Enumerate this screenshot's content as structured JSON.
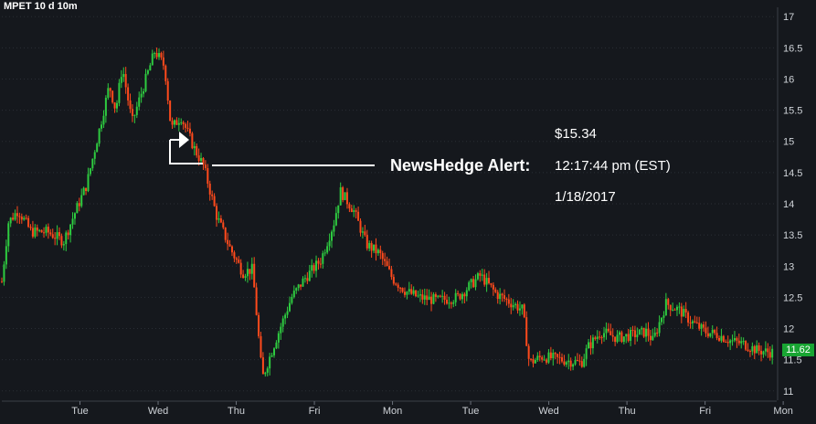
{
  "header": {
    "title": "MPET 10 d 10m"
  },
  "alert": {
    "label": "NewsHedge Alert:",
    "price": "$15.34",
    "time": "12:17:44 pm (EST)",
    "date": "1/18/2017"
  },
  "last_price_badge": "11.62",
  "colors": {
    "background": "#15181d",
    "up": "#2ecc40",
    "down": "#ff4a1c",
    "grid": "#2a2e35",
    "axis_text": "#cfd3d8",
    "badge": "#19a533"
  },
  "chart_data": {
    "type": "candlestick",
    "title": "MPET 10 d 10m",
    "x_tick_labels": [
      "Tue",
      "Wed",
      "Thu",
      "Fri",
      "Mon",
      "Tue",
      "Wed",
      "Thu",
      "Fri",
      "Mon"
    ],
    "y_ticks": [
      11,
      11.5,
      12,
      12.5,
      13,
      13.5,
      14,
      14.5,
      15,
      15.5,
      16,
      16.5,
      17
    ],
    "ylim": [
      10.85,
      17.15
    ],
    "grid": "horizontal-dotted",
    "axis_position": "right",
    "last_value": 11.62,
    "path_points": [
      [
        0.0,
        12.75
      ],
      [
        0.1,
        13.7
      ],
      [
        0.25,
        13.9
      ],
      [
        0.45,
        13.55
      ],
      [
        0.7,
        13.55
      ],
      [
        0.95,
        13.4
      ],
      [
        1.1,
        13.8
      ],
      [
        1.3,
        14.3
      ],
      [
        1.5,
        15.2
      ],
      [
        1.65,
        15.9
      ],
      [
        1.75,
        15.5
      ],
      [
        1.85,
        16.2
      ],
      [
        2.0,
        15.3
      ],
      [
        2.15,
        15.8
      ],
      [
        2.35,
        16.45
      ],
      [
        2.5,
        16.2
      ],
      [
        2.6,
        15.2
      ],
      [
        2.75,
        15.4
      ],
      [
        2.95,
        14.9
      ],
      [
        3.1,
        14.6
      ],
      [
        3.3,
        13.8
      ],
      [
        3.5,
        13.3
      ],
      [
        3.7,
        12.9
      ],
      [
        3.85,
        12.95
      ],
      [
        4.0,
        11.2
      ],
      [
        4.2,
        11.8
      ],
      [
        4.45,
        12.5
      ],
      [
        4.65,
        12.8
      ],
      [
        4.9,
        13.1
      ],
      [
        5.1,
        13.7
      ],
      [
        5.2,
        14.2
      ],
      [
        5.4,
        13.9
      ],
      [
        5.6,
        13.35
      ],
      [
        5.8,
        13.2
      ],
      [
        6.0,
        12.8
      ],
      [
        6.2,
        12.6
      ],
      [
        6.4,
        12.5
      ],
      [
        6.7,
        12.45
      ],
      [
        7.0,
        12.5
      ],
      [
        7.2,
        12.7
      ],
      [
        7.35,
        12.85
      ],
      [
        7.6,
        12.55
      ],
      [
        8.0,
        12.3
      ],
      [
        8.1,
        11.45
      ],
      [
        8.3,
        11.55
      ],
      [
        8.6,
        11.5
      ],
      [
        8.9,
        11.45
      ],
      [
        9.0,
        11.7
      ],
      [
        9.2,
        11.95
      ],
      [
        9.45,
        11.85
      ],
      [
        9.7,
        11.9
      ],
      [
        9.9,
        11.95
      ],
      [
        10.0,
        11.8
      ],
      [
        10.2,
        12.4
      ],
      [
        10.4,
        12.3
      ],
      [
        10.6,
        12.1
      ],
      [
        10.8,
        11.95
      ],
      [
        11.0,
        11.9
      ],
      [
        11.2,
        11.8
      ],
      [
        11.4,
        11.75
      ],
      [
        11.6,
        11.65
      ],
      [
        11.8,
        11.62
      ]
    ]
  }
}
